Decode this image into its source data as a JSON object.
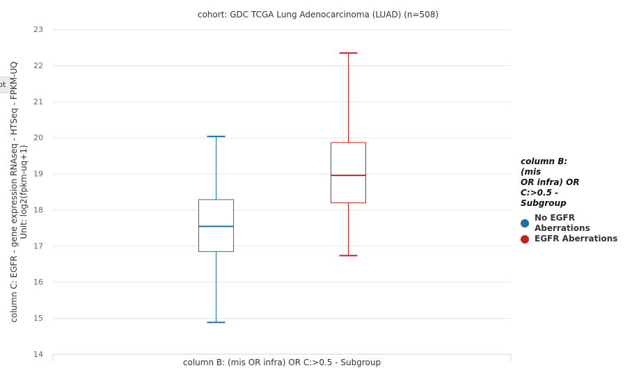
{
  "side_tab": {
    "label": "pt"
  },
  "chart_data": {
    "type": "boxplot",
    "title": "cohort: GDC TCGA Lung Adenocarcinoma (LUAD) (n=508)",
    "xlabel": "column B: (mis OR infra) OR C:>0.5 - Subgroup",
    "ylabel_line1": "column C: EGFR - gene expression RNAseq - HTSeq - FPKM-UQ",
    "ylabel_line2": "Unit: log2(fpkm-uq+1)",
    "ylim": [
      14,
      23
    ],
    "yticks": [
      14,
      15,
      16,
      17,
      18,
      19,
      20,
      21,
      22,
      23
    ],
    "grid": true,
    "legend_placement": "right",
    "legend": {
      "title": [
        "column B: (mis",
        "OR infra) OR",
        "C:>0.5 -",
        "Subgroup"
      ]
    },
    "series": [
      {
        "name": "No EGFR Aberrations",
        "color": "#1f6fa8",
        "min": 14.88,
        "q1": 16.84,
        "median": 17.54,
        "q3": 18.28,
        "max": 20.03
      },
      {
        "name": "EGFR Aberrations",
        "color": "#c81e1e",
        "min": 16.73,
        "q1": 18.19,
        "median": 18.95,
        "q3": 19.86,
        "max": 22.34
      }
    ]
  }
}
